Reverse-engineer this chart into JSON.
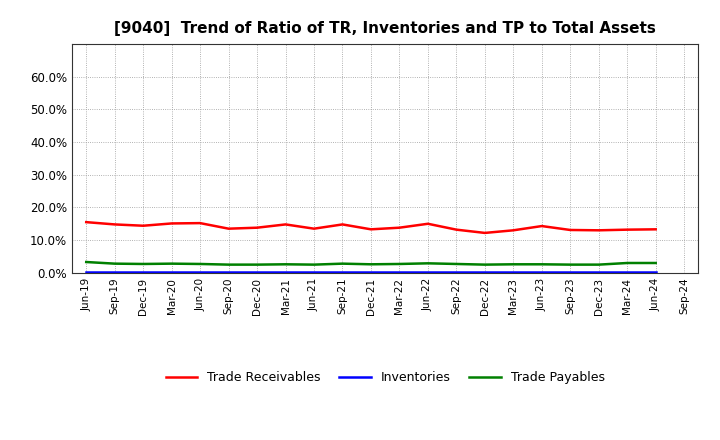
{
  "title": "[9040]  Trend of Ratio of TR, Inventories and TP to Total Assets",
  "title_fontsize": 11,
  "background_color": "#ffffff",
  "plot_background_color": "#ffffff",
  "ylim": [
    0.0,
    0.7
  ],
  "yticks": [
    0.0,
    0.1,
    0.2,
    0.3,
    0.4,
    0.5,
    0.6
  ],
  "ytick_labels": [
    "0.0%",
    "10.0%",
    "20.0%",
    "30.0%",
    "40.0%",
    "50.0%",
    "60.0%"
  ],
  "x_labels": [
    "Jun-19",
    "Sep-19",
    "Dec-19",
    "Mar-20",
    "Jun-20",
    "Sep-20",
    "Dec-20",
    "Mar-21",
    "Jun-21",
    "Sep-21",
    "Dec-21",
    "Mar-22",
    "Jun-22",
    "Sep-22",
    "Dec-22",
    "Mar-23",
    "Jun-23",
    "Sep-23",
    "Dec-23",
    "Mar-24",
    "Jun-24",
    "Sep-24"
  ],
  "trade_receivables": [
    0.155,
    0.148,
    0.144,
    0.151,
    0.152,
    0.135,
    0.138,
    0.148,
    0.135,
    0.148,
    0.133,
    0.138,
    0.15,
    0.132,
    0.122,
    0.13,
    0.143,
    0.131,
    0.13,
    0.132,
    0.133,
    null
  ],
  "inventories": [
    0.002,
    0.002,
    0.002,
    0.002,
    0.002,
    0.002,
    0.002,
    0.002,
    0.002,
    0.002,
    0.002,
    0.002,
    0.002,
    0.002,
    0.002,
    0.002,
    0.002,
    0.002,
    0.002,
    0.002,
    0.002,
    null
  ],
  "trade_payables": [
    0.033,
    0.028,
    0.027,
    0.028,
    0.027,
    0.025,
    0.025,
    0.026,
    0.025,
    0.028,
    0.026,
    0.027,
    0.029,
    0.027,
    0.025,
    0.026,
    0.026,
    0.025,
    0.025,
    0.03,
    0.03,
    null
  ],
  "tr_color": "#ff0000",
  "inv_color": "#0000ff",
  "tp_color": "#008000",
  "tr_label": "Trade Receivables",
  "inv_label": "Inventories",
  "tp_label": "Trade Payables",
  "line_width": 1.8,
  "grid_color": "#999999",
  "grid_linestyle": ":",
  "legend_fontsize": 9
}
